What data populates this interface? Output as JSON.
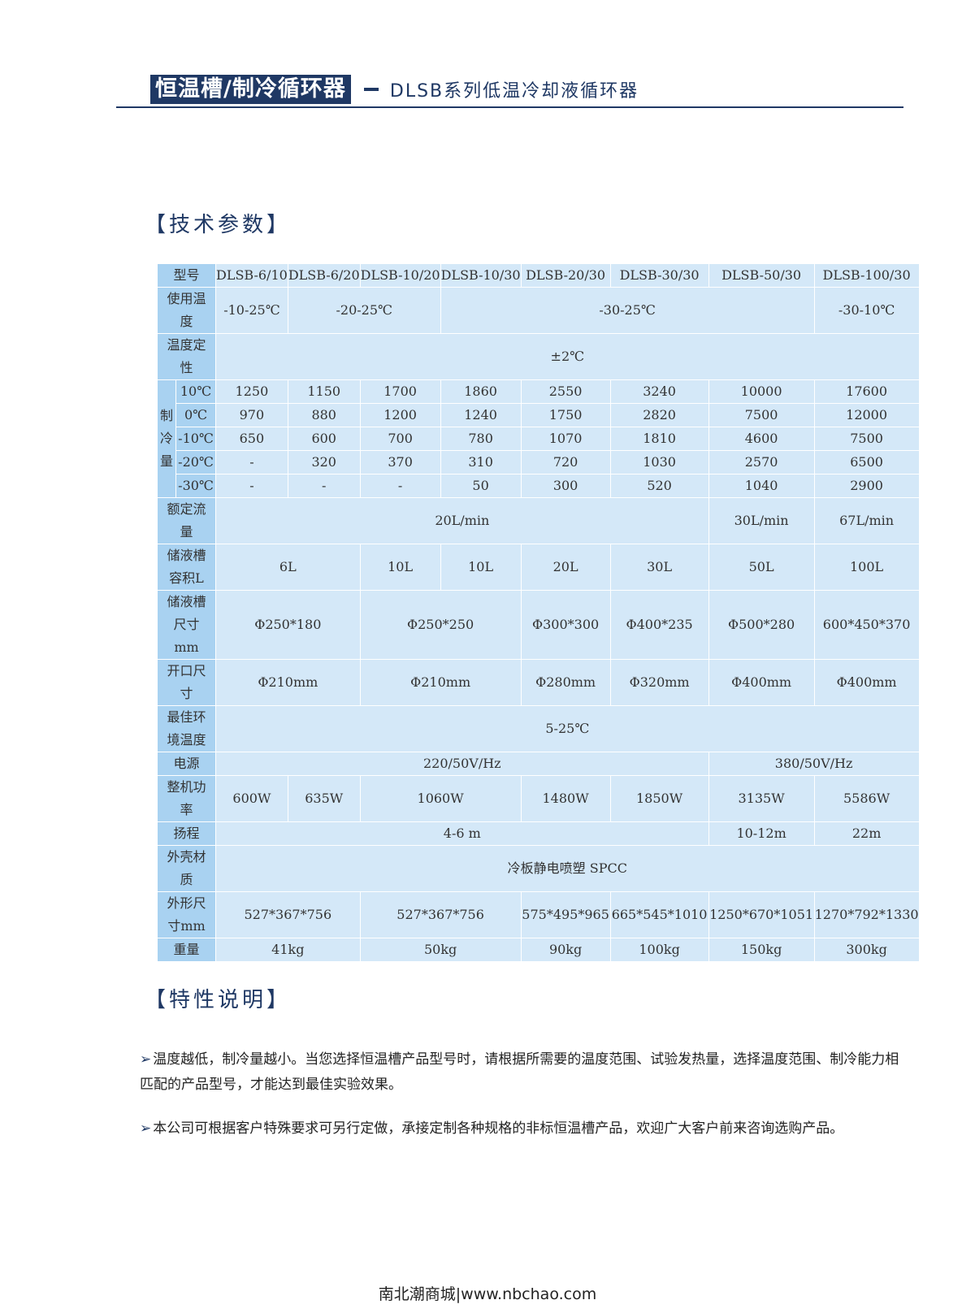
{
  "header": {
    "banner": "恒温槽/制冷循环器",
    "subtitle": "DLSB系列低温冷却液循环器"
  },
  "sections": {
    "tech": "【技术参数】",
    "features": "【特性说明】"
  },
  "table": {
    "rows": [
      {
        "label": "型号",
        "cells": [
          {
            "t": "DLSB-6/10",
            "s": 1
          },
          {
            "t": "DLSB-6/20",
            "s": 1
          },
          {
            "t": "DLSB-10/20",
            "s": 1
          },
          {
            "t": "DLSB-10/30",
            "s": 1
          },
          {
            "t": "DLSB-20/30",
            "s": 1
          },
          {
            "t": "DLSB-30/30",
            "s": 1
          },
          {
            "t": "DLSB-50/30",
            "s": 1
          },
          {
            "t": "DLSB-100/30",
            "s": 1
          }
        ]
      },
      {
        "label": "使用温度",
        "cells": [
          {
            "t": "-10-25℃",
            "s": 1
          },
          {
            "t": "-20-25℃",
            "s": 2
          },
          {
            "t": "-30-25℃",
            "s": 4
          },
          {
            "t": "-30-10℃",
            "s": 1
          }
        ]
      },
      {
        "label": "温度定性",
        "cells": [
          {
            "t": "±2℃",
            "s": 8
          }
        ]
      },
      {
        "group": "制冷量",
        "sub": "10℃",
        "cells": [
          {
            "t": "1250",
            "s": 1
          },
          {
            "t": "1150",
            "s": 1
          },
          {
            "t": "1700",
            "s": 1
          },
          {
            "t": "1860",
            "s": 1
          },
          {
            "t": "2550",
            "s": 1
          },
          {
            "t": "3240",
            "s": 1
          },
          {
            "t": "10000",
            "s": 1
          },
          {
            "t": "17600",
            "s": 1
          }
        ]
      },
      {
        "sub": "0℃",
        "cells": [
          {
            "t": "970",
            "s": 1
          },
          {
            "t": "880",
            "s": 1
          },
          {
            "t": "1200",
            "s": 1
          },
          {
            "t": "1240",
            "s": 1
          },
          {
            "t": "1750",
            "s": 1
          },
          {
            "t": "2820",
            "s": 1
          },
          {
            "t": "7500",
            "s": 1
          },
          {
            "t": "12000",
            "s": 1
          }
        ]
      },
      {
        "sub": "-10℃",
        "cells": [
          {
            "t": "650",
            "s": 1
          },
          {
            "t": "600",
            "s": 1
          },
          {
            "t": "700",
            "s": 1
          },
          {
            "t": "780",
            "s": 1
          },
          {
            "t": "1070",
            "s": 1
          },
          {
            "t": "1810",
            "s": 1
          },
          {
            "t": "4600",
            "s": 1
          },
          {
            "t": "7500",
            "s": 1
          }
        ]
      },
      {
        "sub": "-20℃",
        "cells": [
          {
            "t": "-",
            "s": 1
          },
          {
            "t": "320",
            "s": 1
          },
          {
            "t": "370",
            "s": 1
          },
          {
            "t": "310",
            "s": 1
          },
          {
            "t": "720",
            "s": 1
          },
          {
            "t": "1030",
            "s": 1
          },
          {
            "t": "2570",
            "s": 1
          },
          {
            "t": "6500",
            "s": 1
          }
        ]
      },
      {
        "sub": "-30℃",
        "cells": [
          {
            "t": "-",
            "s": 1
          },
          {
            "t": "-",
            "s": 1
          },
          {
            "t": "-",
            "s": 1
          },
          {
            "t": "50",
            "s": 1
          },
          {
            "t": "300",
            "s": 1
          },
          {
            "t": "520",
            "s": 1
          },
          {
            "t": "1040",
            "s": 1
          },
          {
            "t": "2900",
            "s": 1
          }
        ]
      },
      {
        "label": "额定流量",
        "cells": [
          {
            "t": "20L/min",
            "s": 6
          },
          {
            "t": "30L/min",
            "s": 1
          },
          {
            "t": "67L/min",
            "s": 1
          }
        ]
      },
      {
        "label": "储液槽容积L",
        "cells": [
          {
            "t": "6L",
            "s": 2
          },
          {
            "t": "10L",
            "s": 1
          },
          {
            "t": "10L",
            "s": 1
          },
          {
            "t": "20L",
            "s": 1
          },
          {
            "t": "30L",
            "s": 1
          },
          {
            "t": "50L",
            "s": 1
          },
          {
            "t": "100L",
            "s": 1
          }
        ]
      },
      {
        "label": "储液槽尺寸mm",
        "cells": [
          {
            "t": "Φ250*180",
            "s": 2
          },
          {
            "t": "Φ250*250",
            "s": 2
          },
          {
            "t": "Φ300*300",
            "s": 1
          },
          {
            "t": "Φ400*235",
            "s": 1
          },
          {
            "t": "Φ500*280",
            "s": 1
          },
          {
            "t": "600*450*370",
            "s": 1
          }
        ]
      },
      {
        "label": "开口尺寸",
        "cells": [
          {
            "t": "Φ210mm",
            "s": 2
          },
          {
            "t": "Φ210mm",
            "s": 2
          },
          {
            "t": "Φ280mm",
            "s": 1
          },
          {
            "t": "Φ320mm",
            "s": 1
          },
          {
            "t": "Φ400mm",
            "s": 1
          },
          {
            "t": "Φ400mm",
            "s": 1
          }
        ]
      },
      {
        "label": "最佳环境温度",
        "cells": [
          {
            "t": "5-25℃",
            "s": 8
          }
        ]
      },
      {
        "label": "电源",
        "cells": [
          {
            "t": "220/50V/Hz",
            "s": 6
          },
          {
            "t": "380/50V/Hz",
            "s": 2
          }
        ]
      },
      {
        "label": "整机功率",
        "cells": [
          {
            "t": "600W",
            "s": 1
          },
          {
            "t": "635W",
            "s": 1
          },
          {
            "t": "1060W",
            "s": 2
          },
          {
            "t": "1480W",
            "s": 1
          },
          {
            "t": "1850W",
            "s": 1
          },
          {
            "t": "3135W",
            "s": 1
          },
          {
            "t": "5586W",
            "s": 1
          }
        ]
      },
      {
        "label": "扬程",
        "cells": [
          {
            "t": "4-6 m",
            "s": 6
          },
          {
            "t": "10-12m",
            "s": 1
          },
          {
            "t": "22m",
            "s": 1
          }
        ]
      },
      {
        "label": "外壳材质",
        "cells": [
          {
            "t": "冷板静电喷塑 SPCC",
            "s": 8
          }
        ]
      },
      {
        "label": "外形尺寸mm",
        "cells": [
          {
            "t": "527*367*756",
            "s": 2
          },
          {
            "t": "527*367*756",
            "s": 2
          },
          {
            "t": "575*495*965",
            "s": 1
          },
          {
            "t": "665*545*1010",
            "s": 1
          },
          {
            "t": "1250*670*1051",
            "s": 1
          },
          {
            "t": "1270*792*1330",
            "s": 1
          }
        ]
      },
      {
        "label": "重量",
        "cells": [
          {
            "t": "41kg",
            "s": 2
          },
          {
            "t": "50kg",
            "s": 2
          },
          {
            "t": "90kg",
            "s": 1
          },
          {
            "t": "100kg",
            "s": 1
          },
          {
            "t": "150kg",
            "s": 1
          },
          {
            "t": "300kg",
            "s": 1
          }
        ]
      }
    ]
  },
  "features": [
    "温度越低，制冷量越小。当您选择恒温槽产品型号时，请根据所需要的温度范围、试验发热量，选择温度范围、制冷能力相匹配的产品型号，才能达到最佳实验效果。",
    "本公司可根据客户特殊要求可另行定做，承接定制各种规格的非标恒温槽产品，欢迎广大客户前来咨询选购产品。"
  ],
  "arrow_glyph": "➢",
  "footer": "南北潮商城|www.nbchao.com",
  "colors": {
    "brand": "#1f3864",
    "label_cell": "#a9d2f1",
    "data_cell": "#d4e8f8"
  }
}
